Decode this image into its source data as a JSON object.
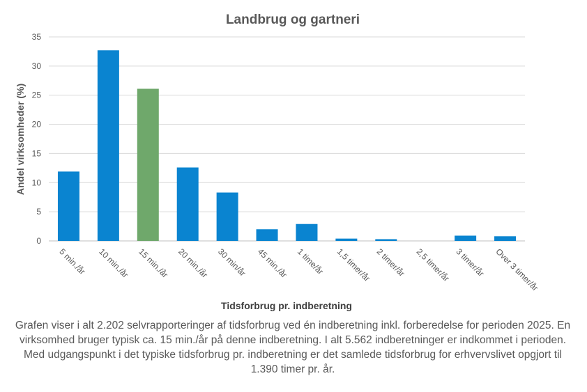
{
  "chart_data": {
    "type": "bar",
    "title": "Landbrug og gartneri",
    "xlabel": "Tidsforbrug pr. indberetning",
    "ylabel": "Andel virksomheder  (%)",
    "categories": [
      "5 min./år",
      "10 min./år",
      "15 min./år",
      "20 min./år",
      "30 min/år",
      "45 min./år",
      "1 time/år",
      "1,5 timer/år",
      "2 timer/år",
      "2,5 timer/år",
      "3 timer/år",
      "Over 3 timer/år"
    ],
    "values": [
      11.9,
      32.7,
      26.1,
      12.6,
      8.3,
      2.0,
      2.9,
      0.4,
      0.3,
      0.0,
      0.9,
      0.8
    ],
    "highlight_index": 2,
    "ylim": [
      0,
      35
    ],
    "yticks": [
      0,
      5,
      10,
      15,
      20,
      25,
      30,
      35
    ],
    "grid": true,
    "colors": {
      "bar": "#0A84D0",
      "highlight": "#6FA86B",
      "grid": "#D9D9D9",
      "title": "#595959",
      "axis_text": "#595959"
    }
  },
  "caption": "Grafen viser i alt 2.202 selvrapporteringer af tidsforbrug ved én indberetning inkl. forberedelse for perioden 2025. En virksomhed bruger typisk ca. 15 min./år på denne indberetning. I alt 5.562 indberetninger er indkommet i perioden. Med udgangspunkt i det typiske tidsforbrug pr. indberetning er det samlede tidsforbrug for erhvervslivet opgjort til 1.390 timer pr. år."
}
